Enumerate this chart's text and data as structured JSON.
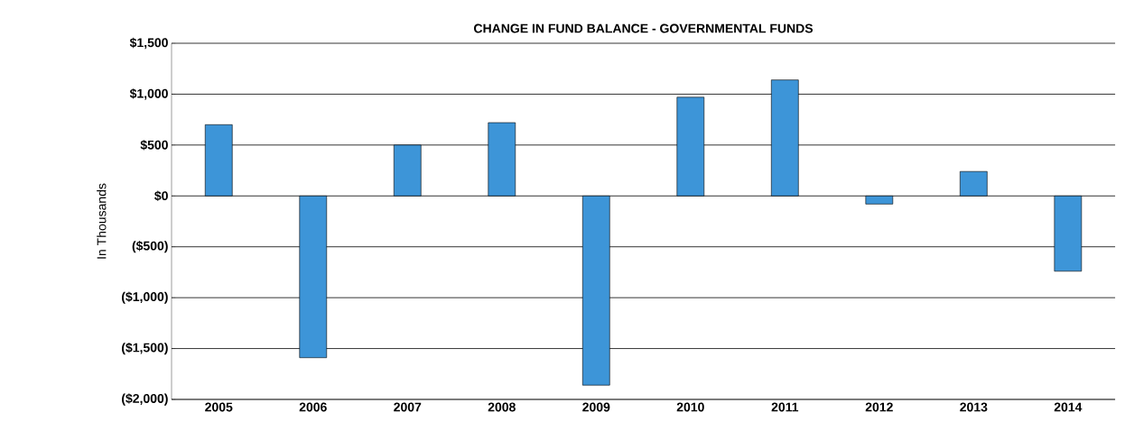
{
  "chart_data": {
    "type": "bar",
    "title": "CHANGE IN FUND BALANCE - GOVERNMENTAL FUNDS",
    "ylabel": "In Thousands",
    "categories": [
      "2005",
      "2006",
      "2007",
      "2008",
      "2009",
      "2010",
      "2011",
      "2012",
      "2013",
      "2014"
    ],
    "values": [
      700,
      -1590,
      500,
      720,
      -1860,
      970,
      1140,
      -80,
      240,
      -740
    ],
    "color": "#3d95d8",
    "ylim": [
      -2000,
      1500
    ],
    "yticks": [
      {
        "value": -2000,
        "label": "($2,000)"
      },
      {
        "value": -1500,
        "label": "($1,500)"
      },
      {
        "value": -1000,
        "label": "($1,000)"
      },
      {
        "value": -500,
        "label": "($500)"
      },
      {
        "value": 0,
        "label": "$0"
      },
      {
        "value": 500,
        "label": "$500"
      },
      {
        "value": 1000,
        "label": "$1,000"
      },
      {
        "value": 1500,
        "label": "$1,500"
      }
    ],
    "grid": "y"
  }
}
